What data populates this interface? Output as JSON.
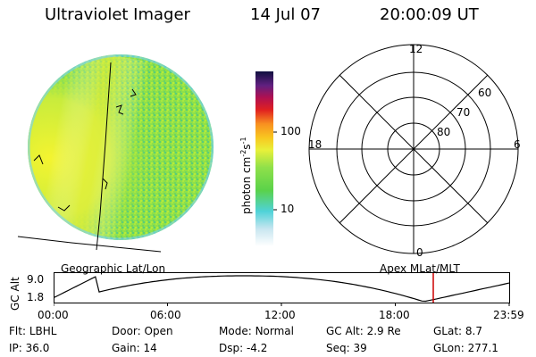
{
  "header": {
    "title": "Ultraviolet Imager",
    "date": "14 Jul 07",
    "time": "20:00:09 UT"
  },
  "colorbar": {
    "label_prefix": "photon cm",
    "label_exp1": "-2",
    "label_s": "s",
    "label_exp2": "-1",
    "ticks": [
      "100",
      "10"
    ]
  },
  "polar": {
    "mlt_labels": {
      "top": "12",
      "left": "18",
      "right": "6",
      "bottom": "0"
    },
    "lat_labels": [
      "60",
      "70",
      "80"
    ]
  },
  "timeline": {
    "left_caption": "Geographic Lat/Lon",
    "right_caption": "Apex MLat/MLT",
    "y_axis_label": "GC Alt",
    "y_ticks": [
      "9.0",
      "1.8"
    ],
    "x_ticks": [
      "00:00",
      "06:00",
      "12:00",
      "18:00",
      "23:59"
    ],
    "marker_time_hours": 20.0
  },
  "info": {
    "row1": [
      {
        "label": "Flt:",
        "value": "LBHL"
      },
      {
        "label": "Door:",
        "value": "Open"
      },
      {
        "label": "Mode:",
        "value": "Normal"
      },
      {
        "label": "GC Alt:",
        "value": "2.9 Re"
      },
      {
        "label": "GLat:",
        "value": "8.7"
      }
    ],
    "row2": [
      {
        "label": "IP:",
        "value": "36.0"
      },
      {
        "label": "Gain:",
        "value": "14"
      },
      {
        "label": "Dsp:",
        "value": "-4.2"
      },
      {
        "label": "Seq:",
        "value": "39"
      },
      {
        "label": "GLon:",
        "value": "277.1"
      }
    ]
  },
  "colors": {
    "disk_base": "#8fe04a",
    "disk_bright": "#e6f23a",
    "marker": "#cc0000"
  }
}
